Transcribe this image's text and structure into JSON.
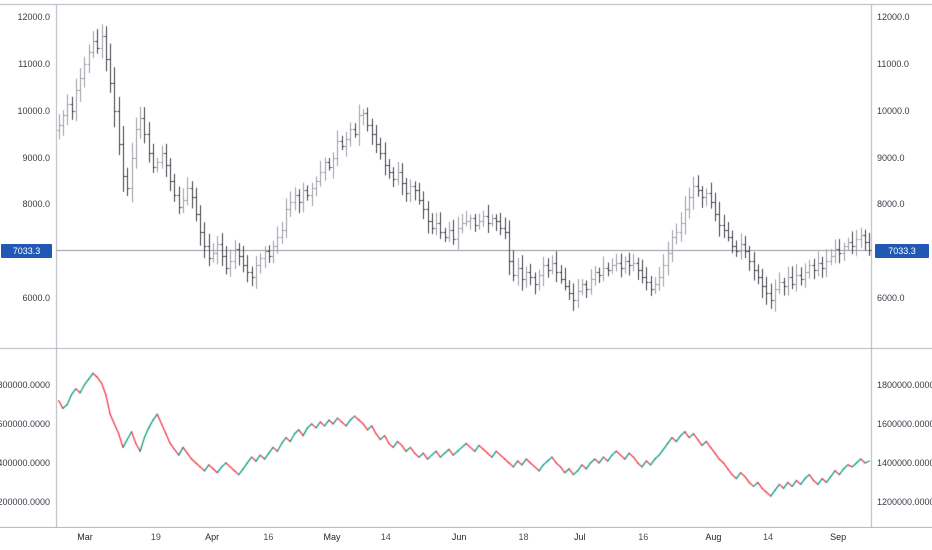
{
  "colors": {
    "background": "#ffffff",
    "pane_border": "#b2b5be",
    "price_line": "#9598a1",
    "axis_text": "#363a45",
    "badge_bg": "#2058b3",
    "badge_text": "#ffffff"
  },
  "chart_data": [
    {
      "type": "bar",
      "subtype": "ohlc-bars",
      "pane": "price",
      "last_price": 7033.3,
      "last_price_label": "7033.3",
      "y_ticks": [
        "12000.0",
        "11000.0",
        "10000.0",
        "9000.0",
        "8000.0",
        "6000.0"
      ],
      "y_tick_values": [
        12000,
        11000,
        10000,
        9000,
        8000,
        6000
      ],
      "ylim": [
        4920,
        12270
      ],
      "grid": false,
      "bar_style": {
        "up_color": "#9b9ea6",
        "down_color": "#3c3f46",
        "wick_base": 50,
        "wick_rand": 160,
        "body_delta_factor": 0.25,
        "first_open_offset": 120
      },
      "closes": [
        9700,
        9900,
        10150,
        10000,
        10450,
        10700,
        11000,
        11250,
        11500,
        11350,
        11600,
        11100,
        10600,
        10000,
        9300,
        8600,
        8350,
        9000,
        9600,
        9850,
        9500,
        9100,
        8800,
        8900,
        9100,
        8850,
        8500,
        8200,
        7950,
        8100,
        8350,
        8150,
        7800,
        7400,
        7100,
        6850,
        6950,
        7150,
        6900,
        6650,
        6800,
        7050,
        6900,
        6700,
        6550,
        6450,
        6700,
        6850,
        7000,
        6900,
        7100,
        7300,
        7450,
        7900,
        8050,
        8200,
        8050,
        8300,
        8200,
        8350,
        8500,
        8700,
        8900,
        8800,
        9000,
        9350,
        9250,
        9400,
        9600,
        9500,
        9900,
        9950,
        9700,
        9500,
        9300,
        9100,
        8850,
        8700,
        8550,
        8700,
        8450,
        8250,
        8400,
        8300,
        8100,
        7900,
        7650,
        7500,
        7600,
        7400,
        7300,
        7450,
        7250,
        7500,
        7600,
        7650,
        7700,
        7550,
        7650,
        7750,
        7600,
        7700,
        7650,
        7500,
        7400,
        6800,
        6500,
        6650,
        6400,
        6550,
        6450,
        6300,
        6500,
        6700,
        6600,
        6750,
        6550,
        6400,
        6250,
        6100,
        5950,
        6150,
        6300,
        6200,
        6400,
        6550,
        6500,
        6650,
        6600,
        6700,
        6750,
        6650,
        6800,
        6700,
        6750,
        6600,
        6450,
        6350,
        6200,
        6300,
        6450,
        6700,
        6950,
        7300,
        7400,
        7600,
        7900,
        8150,
        8400,
        8300,
        8150,
        8250,
        8050,
        7800,
        7550,
        7450,
        7300,
        7100,
        7000,
        7150,
        7000,
        6800,
        6600,
        6450,
        6250,
        6100,
        5950,
        6200,
        6350,
        6250,
        6450,
        6300,
        6500,
        6400,
        6550,
        6700,
        6600,
        6750,
        6650,
        6800,
        6900,
        7050,
        6950,
        7100,
        7200,
        7100,
        7250,
        7350,
        7200,
        7033.3
      ]
    },
    {
      "type": "line",
      "pane": "indicator",
      "up_color": "#089981",
      "down_color": "#f23645",
      "y_ticks": [
        "1800000.0000",
        "1600000.0000",
        "1400000.0000",
        "1200000.0000"
      ],
      "y_tick_values": [
        1800000,
        1600000,
        1400000,
        1200000
      ],
      "ylim": [
        1069000,
        1987000
      ],
      "grid": false,
      "values": [
        1720000,
        1680000,
        1700000,
        1750000,
        1780000,
        1760000,
        1800000,
        1830000,
        1860000,
        1840000,
        1810000,
        1750000,
        1650000,
        1600000,
        1550000,
        1480000,
        1520000,
        1560000,
        1500000,
        1460000,
        1530000,
        1580000,
        1620000,
        1650000,
        1600000,
        1550000,
        1500000,
        1470000,
        1440000,
        1480000,
        1450000,
        1420000,
        1400000,
        1380000,
        1360000,
        1390000,
        1370000,
        1350000,
        1380000,
        1400000,
        1380000,
        1360000,
        1340000,
        1370000,
        1400000,
        1430000,
        1410000,
        1440000,
        1420000,
        1450000,
        1480000,
        1460000,
        1500000,
        1530000,
        1510000,
        1550000,
        1570000,
        1540000,
        1580000,
        1600000,
        1580000,
        1610000,
        1590000,
        1620000,
        1600000,
        1630000,
        1610000,
        1590000,
        1620000,
        1640000,
        1620000,
        1600000,
        1570000,
        1590000,
        1550000,
        1520000,
        1540000,
        1500000,
        1480000,
        1510000,
        1490000,
        1460000,
        1480000,
        1450000,
        1430000,
        1450000,
        1420000,
        1440000,
        1460000,
        1430000,
        1450000,
        1470000,
        1440000,
        1460000,
        1480000,
        1500000,
        1480000,
        1460000,
        1490000,
        1470000,
        1450000,
        1430000,
        1460000,
        1440000,
        1420000,
        1400000,
        1380000,
        1410000,
        1390000,
        1420000,
        1400000,
        1380000,
        1360000,
        1390000,
        1410000,
        1430000,
        1400000,
        1380000,
        1350000,
        1370000,
        1340000,
        1360000,
        1390000,
        1370000,
        1400000,
        1420000,
        1400000,
        1430000,
        1410000,
        1440000,
        1460000,
        1440000,
        1420000,
        1450000,
        1430000,
        1400000,
        1380000,
        1410000,
        1390000,
        1420000,
        1440000,
        1470000,
        1500000,
        1530000,
        1510000,
        1540000,
        1560000,
        1530000,
        1550000,
        1520000,
        1490000,
        1510000,
        1480000,
        1450000,
        1420000,
        1400000,
        1370000,
        1340000,
        1320000,
        1350000,
        1330000,
        1300000,
        1280000,
        1300000,
        1270000,
        1250000,
        1230000,
        1260000,
        1290000,
        1270000,
        1300000,
        1280000,
        1310000,
        1290000,
        1320000,
        1340000,
        1310000,
        1290000,
        1320000,
        1300000,
        1330000,
        1360000,
        1340000,
        1370000,
        1390000,
        1380000,
        1400000,
        1420000,
        1400000,
        1410000
      ]
    }
  ],
  "x_axis": {
    "labels": [
      {
        "text": "Mar",
        "pos": 0.035,
        "kind": "month"
      },
      {
        "text": "19",
        "pos": 0.122,
        "kind": "day"
      },
      {
        "text": "Apr",
        "pos": 0.191,
        "kind": "month"
      },
      {
        "text": "16",
        "pos": 0.26,
        "kind": "day"
      },
      {
        "text": "May",
        "pos": 0.338,
        "kind": "month"
      },
      {
        "text": "14",
        "pos": 0.404,
        "kind": "day"
      },
      {
        "text": "Jun",
        "pos": 0.494,
        "kind": "month"
      },
      {
        "text": "18",
        "pos": 0.573,
        "kind": "day"
      },
      {
        "text": "Jul",
        "pos": 0.642,
        "kind": "month"
      },
      {
        "text": "16",
        "pos": 0.72,
        "kind": "day"
      },
      {
        "text": "Aug",
        "pos": 0.806,
        "kind": "month"
      },
      {
        "text": "14",
        "pos": 0.873,
        "kind": "day"
      },
      {
        "text": "Sep",
        "pos": 0.959,
        "kind": "month"
      }
    ]
  }
}
